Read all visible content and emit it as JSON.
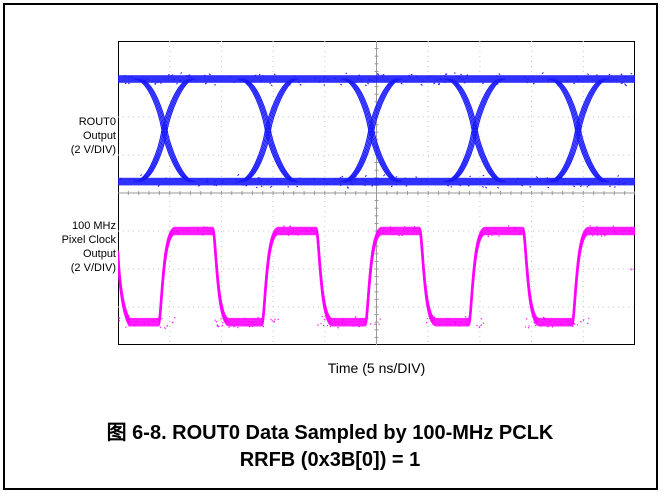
{
  "chart_data": {
    "type": "line",
    "grid": true,
    "xlabel": "Time (5 ns/DIV)",
    "x_divisions": 10,
    "y_divisions": 8,
    "series": [
      {
        "name": "ROUT0 Output (2 V/DIV)",
        "label_lines": [
          "ROUT0",
          "Output",
          "(2 V/DIV)"
        ],
        "color": "#1a1aff",
        "kind": "eye-diagram",
        "high_div": 7.0,
        "low_div": 4.3,
        "crossings_div": [
          0.9,
          2.9,
          4.9,
          6.9,
          8.9
        ]
      },
      {
        "name": "100 MHz Pixel Clock Output (2 V/DIV)",
        "label_lines": [
          "100 MHz",
          "Pixel Clock",
          "Output",
          "(2 V/DIV)"
        ],
        "color": "#ff00ff",
        "kind": "clock",
        "period_ns": 10,
        "high_div": 3.0,
        "low_div": 0.6,
        "rising_edges_div": [
          0.9,
          2.9,
          4.9,
          6.9,
          8.9
        ],
        "falling_edges_div": [
          0.05,
          1.95,
          3.95,
          5.95,
          7.95
        ]
      }
    ]
  },
  "caption": {
    "line1": "图 6-8. ROUT0 Data Sampled by 100-MHz PCLK",
    "line2": "RRFB (0x3B[0]) = 1"
  }
}
